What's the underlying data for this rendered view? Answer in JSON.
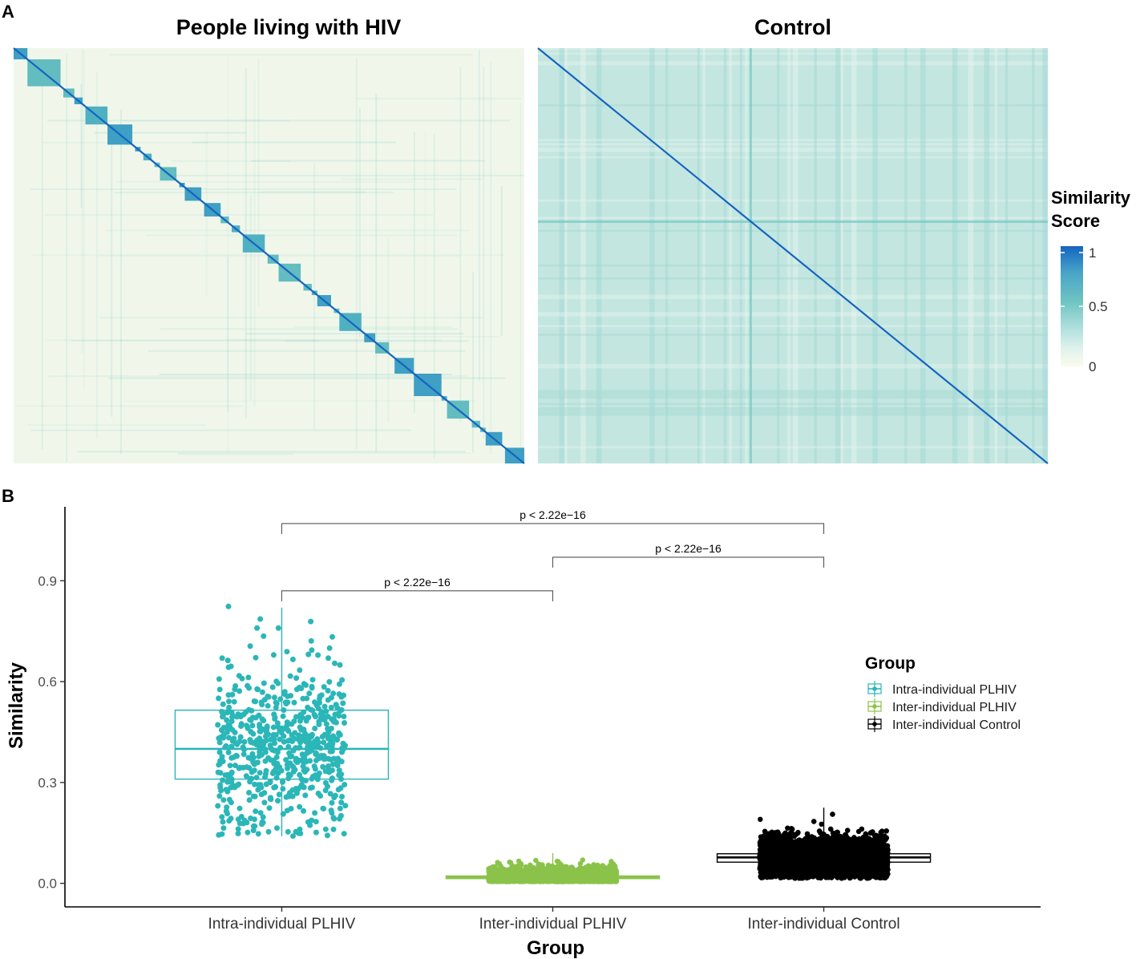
{
  "chart_data": [
    {
      "type": "heatmap",
      "panel": "A",
      "title": "People living with HIV",
      "matrix_size": 192,
      "diagonal_value": 1.0,
      "background_range": [
        0.02,
        0.14
      ],
      "individual_blocks": [
        5,
        12,
        1,
        4,
        3,
        1,
        8,
        9,
        1,
        2,
        1,
        3,
        1,
        2,
        6,
        1,
        2,
        6,
        1,
        6,
        3,
        1,
        3,
        1,
        8,
        1,
        4,
        8,
        1,
        3,
        2,
        5,
        1,
        2,
        8,
        1,
        4,
        5,
        1,
        1,
        7,
        10,
        2,
        8,
        1,
        3,
        2,
        6,
        1,
        7
      ],
      "block_similarity_range": [
        0.45,
        0.65
      ]
    },
    {
      "type": "heatmap",
      "panel": "A",
      "title": "Control",
      "matrix_size": 192,
      "diagonal_value": 1.0,
      "background_range": [
        0.08,
        0.32
      ]
    },
    {
      "type": "box_jitter",
      "panel": "B",
      "xlabel": "Group",
      "ylabel": "Similarity",
      "ylim": [
        -0.07,
        1.12
      ],
      "yticks": [
        0.0,
        0.3,
        0.6,
        0.9
      ],
      "ytick_labels": [
        "0.0",
        "0.3",
        "0.6",
        "0.9"
      ],
      "categories": [
        "Intra-individual PLHIV",
        "Inter-individual PLHIV",
        "Inter-individual Control"
      ],
      "series": [
        {
          "name": "Intra-individual PLHIV",
          "color": "#2bb6b8",
          "whisker_min": 0.14,
          "q1": 0.31,
          "median": 0.4,
          "q3": 0.515,
          "whisker_max": 0.82,
          "n_points": 650,
          "point_range": [
            0.14,
            0.83
          ]
        },
        {
          "name": "Inter-individual PLHIV",
          "color": "#8bc34a",
          "whisker_min": 0.0,
          "q1": 0.014,
          "median": 0.018,
          "q3": 0.022,
          "whisker_max": 0.09,
          "n_points": 3000,
          "point_range": [
            0.0,
            0.09
          ]
        },
        {
          "name": "Inter-individual Control",
          "color": "#000000",
          "whisker_min": 0.015,
          "q1": 0.063,
          "median": 0.077,
          "q3": 0.088,
          "whisker_max": 0.225,
          "n_points": 6000,
          "point_range": [
            0.015,
            0.225
          ]
        }
      ],
      "comparisons": [
        {
          "from": 0,
          "to": 1,
          "label": "p < 2.22e−16",
          "y": 0.87
        },
        {
          "from": 1,
          "to": 2,
          "label": "p < 2.22e−16",
          "y": 0.97
        },
        {
          "from": 0,
          "to": 2,
          "label": "p < 2.22e−16",
          "y": 1.07
        }
      ],
      "legend": {
        "title": "Group",
        "position": "right",
        "items": [
          "Intra-individual PLHIV",
          "Inter-individual PLHIV",
          "Inter-individual Control"
        ]
      }
    }
  ],
  "panels": {
    "a_label": "A",
    "b_label": "B"
  },
  "colorbar": {
    "title_line1": "Similarity",
    "title_line2": "Score",
    "ticks": [
      1,
      0.5,
      0
    ],
    "tick_labels": [
      "1",
      "0.5",
      "0"
    ],
    "stops": [
      "#fbfbec",
      "#e0f2ec",
      "#a6dcda",
      "#6dc2c2",
      "#48a4c8",
      "#1565c0"
    ]
  }
}
